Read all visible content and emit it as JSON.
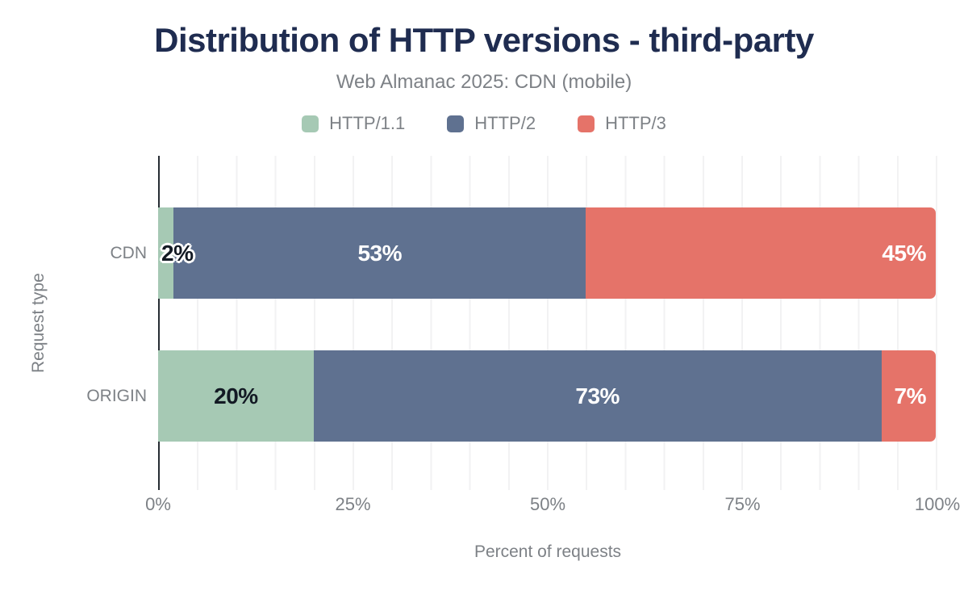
{
  "title": "Distribution of HTTP versions - third-party",
  "subtitle": "Web Almanac 2025: CDN (mobile)",
  "legend": [
    {
      "label": "HTTP/1.1",
      "color": "#a6c9b4"
    },
    {
      "label": "HTTP/2",
      "color": "#5f7190"
    },
    {
      "label": "HTTP/3",
      "color": "#e57369"
    }
  ],
  "colors": {
    "title": "#1f2c50",
    "muted_text": "#7d8186",
    "axis_line": "#262c33",
    "gridline": "#f2f2f3",
    "label_dark": "#131a24",
    "label_light": "#ffffff",
    "background": "#ffffff"
  },
  "chart_data": {
    "type": "bar",
    "orientation": "horizontal",
    "stacked": true,
    "title": "Distribution of HTTP versions - third-party",
    "subtitle": "Web Almanac 2025: CDN (mobile)",
    "xlabel": "Percent of requests",
    "ylabel": "Request type",
    "xlim": [
      0,
      100
    ],
    "xticks": [
      "0%",
      "25%",
      "50%",
      "75%",
      "100%"
    ],
    "grid": "vertical gridlines every 5%",
    "legend_position": "top",
    "categories": [
      "CDN",
      "ORIGIN"
    ],
    "series": [
      {
        "name": "HTTP/1.1",
        "color": "#a6c9b4",
        "values": [
          2,
          20
        ],
        "labels": [
          "2%",
          "20%"
        ]
      },
      {
        "name": "HTTP/2",
        "color": "#5f7190",
        "values": [
          53,
          73
        ],
        "labels": [
          "53%",
          "73%"
        ]
      },
      {
        "name": "HTTP/3",
        "color": "#e57369",
        "values": [
          45,
          7
        ],
        "labels": [
          "45%",
          "7%"
        ]
      }
    ]
  }
}
